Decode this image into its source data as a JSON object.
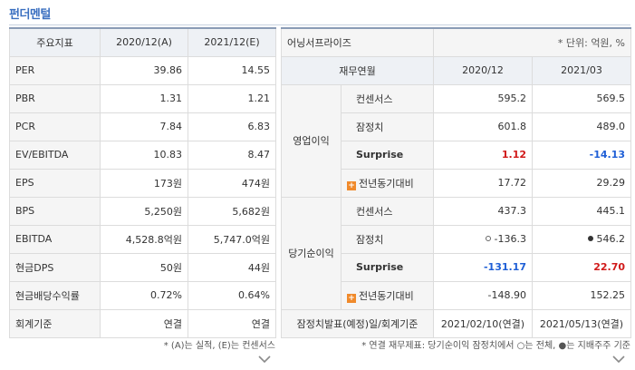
{
  "title": "펀더멘털",
  "left": {
    "headers": [
      "주요지표",
      "2020/12(A)",
      "2021/12(E)"
    ],
    "rows": [
      {
        "label": "PER",
        "a": "39.86",
        "e": "14.55"
      },
      {
        "label": "PBR",
        "a": "1.31",
        "e": "1.21"
      },
      {
        "label": "PCR",
        "a": "7.84",
        "e": "6.83"
      },
      {
        "label": "EV/EBITDA",
        "a": "10.83",
        "e": "8.47"
      },
      {
        "label": "EPS",
        "a": "173원",
        "e": "474원"
      },
      {
        "label": "BPS",
        "a": "5,250원",
        "e": "5,682원"
      },
      {
        "label": "EBITDA",
        "a": "4,528.8억원",
        "e": "5,747.0억원"
      },
      {
        "label": "현금DPS",
        "a": "50원",
        "e": "44원"
      },
      {
        "label": "현금배당수익률",
        "a": "0.72%",
        "e": "0.64%"
      },
      {
        "label": "회계기준",
        "a": "연결",
        "e": "연결"
      }
    ],
    "note": "* (A)는 실적, (E)는 컨센서스"
  },
  "right": {
    "company": "어닝서프라이즈",
    "unit": "* 단위: 억원, %",
    "headers": [
      "재무연월",
      "2020/12",
      "2021/03"
    ],
    "op_group": "영업이익",
    "net_group": "당기순이익",
    "op": {
      "consensus": {
        "label": "컨센서스",
        "v1": "595.2",
        "v2": "569.5"
      },
      "actual": {
        "label": "잠정치",
        "v1": "601.8",
        "v2": "489.0"
      },
      "surprise": {
        "label": "Surprise",
        "v1": "1.12",
        "v2": "-14.13"
      },
      "yoy": {
        "label": "전년동기대비",
        "v1": "17.72",
        "v2": "29.29"
      }
    },
    "net": {
      "consensus": {
        "label": "컨센서스",
        "v1": "437.3",
        "v2": "445.1"
      },
      "actual": {
        "label": "잠정치",
        "v1": "-136.3",
        "v2": "546.2"
      },
      "surprise": {
        "label": "Surprise",
        "v1": "-131.17",
        "v2": "22.70"
      },
      "yoy": {
        "label": "전년동기대비",
        "v1": "-148.90",
        "v2": "152.25"
      }
    },
    "footer": {
      "label": "잠정치발표(예정)일/회계기준",
      "v1": "2021/02/10(연결)",
      "v2": "2021/05/13(연결)"
    },
    "note": "* 연결 재무제표: 당기순이익 잠정치에서 ○는 전체, ●는 지배주주 기준"
  },
  "colors": {
    "positive": "#d11a1a",
    "negative": "#1f5fd6",
    "accent": "#3a6fc0",
    "plus_icon": "#f08a2b"
  },
  "icons": {
    "yoy": "plus-icon",
    "expand": "chevron-down-icon",
    "total_marker": "circle-icon",
    "controlling_marker": "filled-dot-icon"
  }
}
